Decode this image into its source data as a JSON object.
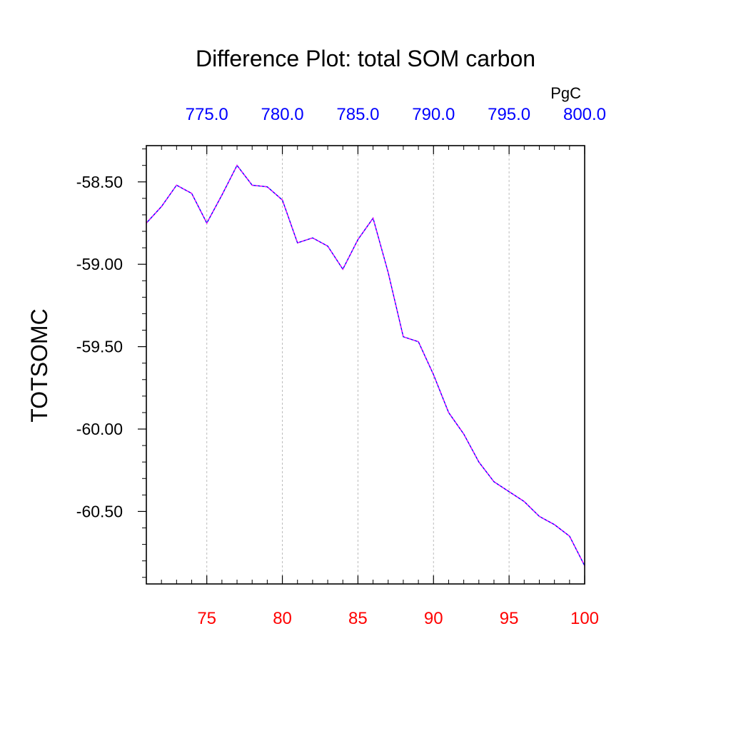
{
  "chart_data": {
    "type": "line",
    "title": "Difference Plot: total SOM carbon",
    "ylabel": "TOTSOMC",
    "top_axis_units": "PgC",
    "xlim": [
      71,
      100
    ],
    "ylim": [
      -60.94,
      -58.28
    ],
    "x_ticks": [
      "75",
      "80",
      "85",
      "90",
      "95",
      "100"
    ],
    "y_ticks": [
      "-58.50",
      "-59.00",
      "-59.50",
      "-60.00",
      "-60.50"
    ],
    "top_ticks": [
      "775.0",
      "780.0",
      "785.0",
      "790.0",
      "795.0",
      "800.0"
    ],
    "grid": "vertical dashed at major x ticks",
    "colors": {
      "bottom_ticks": "#ff0000",
      "top_ticks": "#0000ff",
      "line_primary": "#0000ff",
      "line_dash": "#ff00ff"
    },
    "x": [
      71,
      72,
      73,
      74,
      75,
      76,
      77,
      78,
      79,
      80,
      81,
      82,
      83,
      84,
      85,
      86,
      87,
      88,
      89,
      90,
      91,
      92,
      93,
      94,
      95,
      96,
      97,
      98,
      99,
      100
    ],
    "series": [
      {
        "values": [
          -58.75,
          -58.65,
          -58.52,
          -58.57,
          -58.75,
          -58.58,
          -58.4,
          -58.52,
          -58.53,
          -58.61,
          -58.87,
          -58.84,
          -58.89,
          -59.03,
          -58.85,
          -58.72,
          -59.05,
          -59.44,
          -59.47,
          -59.67,
          -59.9,
          -60.03,
          -60.2,
          -60.32,
          -60.38,
          -60.44,
          -60.53,
          -60.58,
          -60.65,
          -60.83
        ]
      }
    ]
  }
}
